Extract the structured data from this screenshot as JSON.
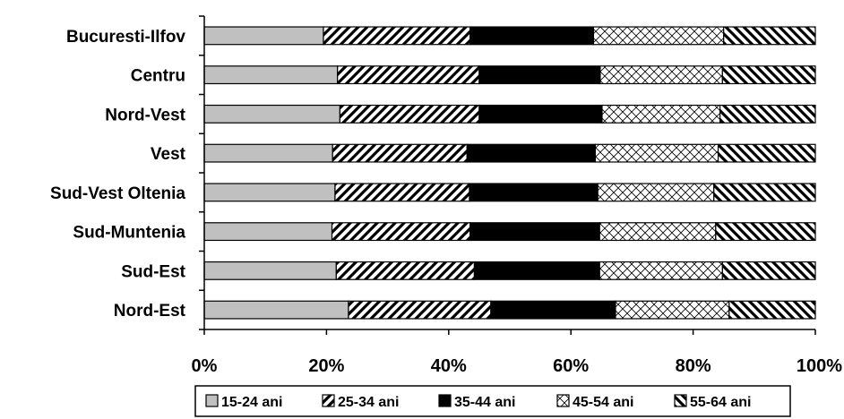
{
  "chart_data": {
    "type": "bar",
    "orientation": "horizontal",
    "stacked": "percent",
    "categories": [
      "Bucuresti-Ilfov",
      "Centru",
      "Nord-Vest ",
      "Vest",
      "Sud-Vest Oltenia",
      "Sud-Muntenia",
      "Sud-Est",
      "Nord-Est"
    ],
    "series": [
      {
        "name": "15-24 ani",
        "values": [
          19.5,
          21.8,
          22.2,
          21.0,
          21.4,
          20.9,
          21.6,
          23.6
        ],
        "pattern": "gray"
      },
      {
        "name": "25-34 ani",
        "values": [
          24.0,
          23.2,
          22.8,
          22.0,
          22.0,
          22.6,
          22.6,
          23.3
        ],
        "pattern": "diagonal-forward"
      },
      {
        "name": "35-44 ani",
        "values": [
          20.2,
          19.8,
          20.1,
          21.0,
          21.0,
          21.2,
          20.5,
          20.4
        ],
        "pattern": "solid-black"
      },
      {
        "name": "45-54 ani",
        "values": [
          21.3,
          20.0,
          19.3,
          20.1,
          19.0,
          19.0,
          20.1,
          18.6
        ],
        "pattern": "crosshatch"
      },
      {
        "name": "55-64 ani",
        "values": [
          15.0,
          15.2,
          15.6,
          15.9,
          16.6,
          16.3,
          15.2,
          14.1
        ],
        "pattern": "diagonal-backward"
      }
    ],
    "x_ticks": [
      "0%",
      "20%",
      "40%",
      "60%",
      "80%",
      "100%"
    ],
    "xlim": [
      0,
      100
    ],
    "grid": false,
    "legend_position": "bottom"
  }
}
